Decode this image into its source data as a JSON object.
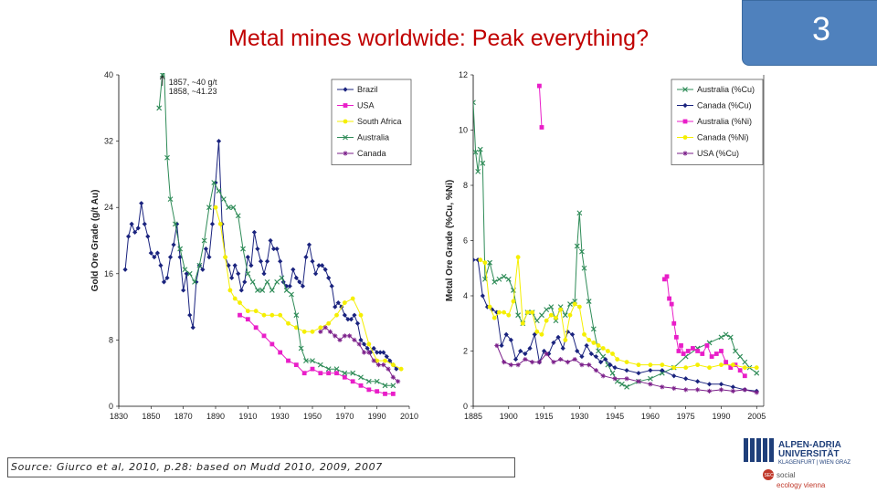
{
  "slide": {
    "title": "Metal mines worldwide: Peak everything?",
    "number": "3",
    "source": "Source: Giurco et al, 2010, p.28: based on Mudd 2010, 2009, 2007",
    "colors": {
      "title": "#c00000",
      "badge": "#4f81bd"
    }
  },
  "logo": {
    "line1": "ALPEN-ADRIA",
    "line2": "UNIVERSITÄT",
    "line3": "KLAGENFURT | WIEN GRAZ",
    "social": "social",
    "ecology": "ecology vienna",
    "badge": "SEC",
    "colors": {
      "blue": "#1f3f7a",
      "red": "#c0392b"
    }
  },
  "chart_data": [
    {
      "type": "line",
      "title": "",
      "xlabel": "",
      "ylabel": "Gold Ore Grade (g/t Au)",
      "xlim": [
        1830,
        2010
      ],
      "ylim": [
        0,
        40
      ],
      "x_ticks": [
        "1830",
        "1850",
        "1870",
        "1890",
        "1910",
        "1930",
        "1950",
        "1970",
        "1990",
        "2010"
      ],
      "y_ticks": [
        "0",
        "8",
        "16",
        "24",
        "32",
        "40"
      ],
      "annotation": [
        "1857, ~40 g/t",
        "1858, ~41.23"
      ],
      "series": [
        {
          "name": "Brazil",
          "color": "#1a237e",
          "marker": "diamond",
          "x": [
            1834,
            1836,
            1838,
            1840,
            1842,
            1844,
            1846,
            1848,
            1850,
            1852,
            1854,
            1856,
            1858,
            1860,
            1862,
            1864,
            1866,
            1868,
            1870,
            1872,
            1874,
            1876,
            1878,
            1880,
            1882,
            1884,
            1886,
            1888,
            1890,
            1892,
            1894,
            1896,
            1898,
            1900,
            1902,
            1904,
            1906,
            1908,
            1910,
            1912,
            1914,
            1916,
            1918,
            1920,
            1922,
            1924,
            1926,
            1928,
            1930,
            1932,
            1934,
            1936,
            1938,
            1940,
            1942,
            1944,
            1946,
            1948,
            1950,
            1952,
            1954,
            1956,
            1958,
            1960,
            1962,
            1964,
            1966,
            1968,
            1970,
            1972,
            1974,
            1976,
            1978,
            1980,
            1982,
            1984,
            1986,
            1988,
            1990,
            1992,
            1994,
            1996,
            1998,
            2000,
            2002
          ],
          "values": [
            16.5,
            20.5,
            22,
            21,
            21.5,
            24.5,
            22,
            20.5,
            18.5,
            18,
            18.5,
            17,
            15,
            15.5,
            18,
            19.5,
            22,
            18,
            14,
            16,
            11,
            9.5,
            15,
            17,
            16.5,
            19,
            18,
            22,
            27,
            32,
            22,
            18,
            17,
            15.5,
            17,
            16,
            14,
            15,
            18,
            17,
            21,
            19,
            17.5,
            16,
            17.5,
            20,
            19,
            19,
            17.5,
            15,
            14.5,
            14.5,
            16.5,
            15.5,
            15,
            14.5,
            18,
            19.5,
            17.5,
            16,
            17,
            17,
            16.5,
            15.5,
            14.5,
            12,
            12.5,
            12,
            11,
            10.5,
            10.5,
            11,
            10,
            8,
            7.5,
            7,
            6.5,
            7,
            6.5,
            6.5,
            6.5,
            6,
            5.5,
            5,
            4.5
          ]
        },
        {
          "name": "USA",
          "color": "#e91ec8",
          "marker": "square",
          "x": [
            1905,
            1910,
            1915,
            1920,
            1925,
            1930,
            1935,
            1940,
            1945,
            1950,
            1955,
            1960,
            1965,
            1970,
            1975,
            1980,
            1985,
            1990,
            1995,
            2000
          ],
          "values": [
            11,
            10.5,
            9.5,
            8.5,
            7.5,
            6.5,
            5.5,
            5,
            4,
            4.5,
            4,
            4,
            4,
            3.5,
            3,
            2.5,
            2,
            1.8,
            1.5,
            1.5
          ]
        },
        {
          "name": "South Africa",
          "color": "#f5ef00",
          "marker": "circle",
          "x": [
            1890,
            1893,
            1896,
            1899,
            1902,
            1905,
            1910,
            1915,
            1920,
            1925,
            1930,
            1935,
            1940,
            1945,
            1950,
            1955,
            1960,
            1965,
            1970,
            1975,
            1980,
            1985,
            1990,
            1995,
            2000,
            2005
          ],
          "values": [
            24,
            22,
            18,
            14,
            13,
            12.5,
            11.5,
            11.5,
            11,
            11,
            11,
            10,
            9.5,
            9,
            9,
            9.5,
            10,
            11,
            12.5,
            13,
            11,
            7.5,
            5.5,
            5.5,
            5,
            4.5
          ]
        },
        {
          "name": "Australia",
          "color": "#2e8b57",
          "marker": "x",
          "x": [
            1855,
            1857,
            1858,
            1860,
            1862,
            1865,
            1868,
            1871,
            1874,
            1877,
            1880,
            1883,
            1886,
            1889,
            1892,
            1895,
            1898,
            1901,
            1904,
            1907,
            1910,
            1913,
            1916,
            1919,
            1922,
            1925,
            1928,
            1931,
            1934,
            1937,
            1940,
            1943,
            1946,
            1950,
            1955,
            1960,
            1965,
            1970,
            1975,
            1980,
            1985,
            1990,
            1995,
            2000
          ],
          "values": [
            36,
            40,
            41,
            30,
            25,
            22,
            19,
            16.5,
            16,
            15,
            17,
            20,
            24,
            27,
            26,
            25,
            24,
            24,
            23,
            19,
            16,
            15,
            14,
            14,
            15,
            14,
            15,
            15.5,
            14,
            13.5,
            11,
            7,
            5.5,
            5.5,
            5,
            4.5,
            4.5,
            4,
            4,
            3.5,
            3,
            3,
            2.5,
            2.5
          ]
        },
        {
          "name": "Canada",
          "color": "#7b1f8a",
          "marker": "star",
          "x": [
            1955,
            1958,
            1961,
            1964,
            1967,
            1970,
            1973,
            1976,
            1979,
            1982,
            1985,
            1988,
            1991,
            1994,
            1997,
            2000,
            2003
          ],
          "values": [
            9,
            9.5,
            9,
            8.5,
            8,
            8.5,
            8.5,
            8,
            7.5,
            6.5,
            6.5,
            5.5,
            5,
            5,
            4.5,
            3.5,
            3
          ]
        }
      ]
    },
    {
      "type": "line",
      "title": "",
      "xlabel": "",
      "ylabel": "Metal Ore Grade (%Cu, %Ni)",
      "xlim": [
        1885,
        2008
      ],
      "ylim": [
        0,
        12
      ],
      "x_ticks": [
        "1885",
        "1900",
        "1915",
        "1930",
        "1945",
        "1960",
        "1975",
        "1990",
        "2005"
      ],
      "y_ticks": [
        "0",
        "2",
        "4",
        "6",
        "8",
        "10",
        "12"
      ],
      "series": [
        {
          "name": "Australia (%Cu)",
          "color": "#2e8b57",
          "marker": "x",
          "x": [
            1885,
            1886,
            1887,
            1888,
            1889,
            1890,
            1892,
            1894,
            1896,
            1898,
            1900,
            1902,
            1904,
            1906,
            1908,
            1910,
            1912,
            1914,
            1916,
            1918,
            1920,
            1922,
            1924,
            1926,
            1928,
            1929,
            1930,
            1931,
            1932,
            1934,
            1936,
            1938,
            1940,
            1942,
            1944,
            1946,
            1948,
            1950,
            1955,
            1960,
            1965,
            1970,
            1975,
            1980,
            1985,
            1990,
            1992,
            1994,
            1996,
            1998,
            2000,
            2002,
            2005
          ],
          "values": [
            11,
            9.2,
            8.5,
            9.3,
            8.8,
            4.6,
            5.2,
            4.5,
            4.6,
            4.7,
            4.6,
            4.2,
            3.3,
            3.0,
            3.4,
            3.4,
            3.1,
            3.3,
            3.5,
            3.6,
            3.1,
            3.6,
            3.3,
            3.7,
            3.8,
            5.8,
            7.0,
            5.6,
            5.0,
            3.8,
            2.8,
            2.0,
            1.8,
            1.5,
            1.2,
            0.9,
            0.8,
            0.7,
            0.9,
            1.0,
            1.2,
            1.4,
            1.8,
            2.1,
            2.3,
            2.5,
            2.6,
            2.5,
            2.0,
            1.8,
            1.6,
            1.4,
            1.2
          ]
        },
        {
          "name": "Canada (%Cu)",
          "color": "#1a237e",
          "marker": "diamond",
          "x": [
            1885,
            1887,
            1889,
            1891,
            1893,
            1895,
            1897,
            1899,
            1901,
            1903,
            1905,
            1907,
            1909,
            1911,
            1913,
            1915,
            1917,
            1919,
            1921,
            1923,
            1925,
            1927,
            1929,
            1931,
            1933,
            1935,
            1937,
            1939,
            1941,
            1943,
            1945,
            1950,
            1955,
            1960,
            1965,
            1970,
            1975,
            1980,
            1985,
            1990,
            1995,
            2000,
            2005
          ],
          "values": [
            5.3,
            5.3,
            4.0,
            3.6,
            3.5,
            3.4,
            2.2,
            2.6,
            2.4,
            1.7,
            2.0,
            1.9,
            2.1,
            2.6,
            1.6,
            2.0,
            1.9,
            2.3,
            2.5,
            2.1,
            2.7,
            2.6,
            2.0,
            1.8,
            2.2,
            1.9,
            1.8,
            1.6,
            1.7,
            1.5,
            1.4,
            1.3,
            1.2,
            1.3,
            1.3,
            1.1,
            1.0,
            0.9,
            0.8,
            0.8,
            0.7,
            0.6,
            0.55
          ]
        },
        {
          "name": "Australia (%Ni)",
          "color": "#e91ec8",
          "marker": "square",
          "x": [
            1913,
            1914,
            1966,
            1967,
            1968,
            1969,
            1970,
            1971,
            1972,
            1973,
            1974,
            1976,
            1978,
            1980,
            1982,
            1984,
            1986,
            1988,
            1990,
            1992,
            1994,
            1996,
            1998,
            2000
          ],
          "values": [
            11.6,
            10.1,
            4.6,
            4.7,
            3.9,
            3.7,
            3.0,
            2.5,
            2.0,
            2.2,
            1.9,
            2.0,
            2.1,
            2.0,
            1.9,
            2.2,
            1.8,
            1.9,
            2.0,
            1.6,
            1.4,
            1.5,
            1.3,
            1.1
          ]
        },
        {
          "name": "Canada (%Ni)",
          "color": "#f5ef00",
          "marker": "circle",
          "x": [
            1888,
            1890,
            1892,
            1894,
            1896,
            1898,
            1900,
            1902,
            1904,
            1906,
            1908,
            1910,
            1912,
            1914,
            1916,
            1918,
            1920,
            1922,
            1924,
            1926,
            1928,
            1930,
            1932,
            1934,
            1936,
            1938,
            1940,
            1942,
            1944,
            1946,
            1950,
            1955,
            1960,
            1965,
            1970,
            1975,
            1980,
            1985,
            1990,
            1995,
            2000,
            2005
          ],
          "values": [
            5.3,
            5.2,
            3.6,
            3.2,
            3.4,
            3.4,
            3.3,
            3.8,
            5.4,
            3.0,
            3.4,
            3.4,
            2.7,
            2.6,
            3.1,
            3.3,
            3.2,
            3.5,
            2.4,
            3.3,
            3.7,
            3.6,
            2.6,
            2.4,
            2.3,
            2.2,
            2.1,
            2.0,
            1.9,
            1.7,
            1.6,
            1.5,
            1.5,
            1.5,
            1.4,
            1.4,
            1.5,
            1.4,
            1.5,
            1.5,
            1.4,
            1.4
          ]
        },
        {
          "name": "USA (%Cu)",
          "color": "#7b1f8a",
          "marker": "star",
          "x": [
            1895,
            1898,
            1901,
            1904,
            1907,
            1910,
            1913,
            1916,
            1919,
            1922,
            1925,
            1928,
            1931,
            1934,
            1937,
            1940,
            1945,
            1950,
            1955,
            1960,
            1965,
            1970,
            1975,
            1980,
            1985,
            1990,
            1995,
            2000,
            2005
          ],
          "values": [
            2.2,
            1.6,
            1.5,
            1.5,
            1.7,
            1.6,
            1.6,
            1.9,
            1.6,
            1.7,
            1.6,
            1.7,
            1.5,
            1.5,
            1.3,
            1.1,
            1.0,
            1.0,
            0.9,
            0.8,
            0.7,
            0.65,
            0.6,
            0.6,
            0.55,
            0.6,
            0.55,
            0.6,
            0.5
          ]
        }
      ]
    }
  ]
}
